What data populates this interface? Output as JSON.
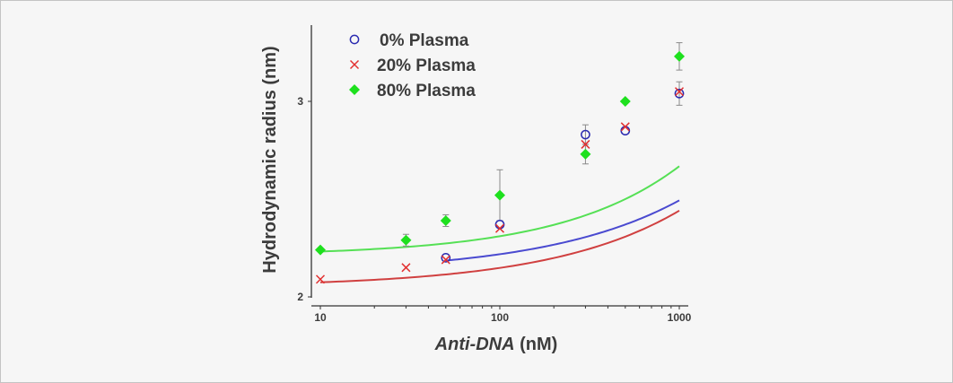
{
  "chart_data": {
    "type": "scatter",
    "x_scale": "log",
    "xlim": [
      10,
      1000
    ],
    "ylim": [
      2,
      3.4
    ],
    "xlabel_italic": "Anti-DNA",
    "xlabel_rest": " (nM)",
    "ylabel": "Hydrodynamic radius (nm)",
    "x_ticks": [
      {
        "value": 10,
        "label": "10"
      },
      {
        "value": 100,
        "label": "100"
      },
      {
        "value": 1000,
        "label": "1000"
      }
    ],
    "y_ticks": [
      {
        "value": 2,
        "label": "2"
      },
      {
        "value": 3,
        "label": "3"
      }
    ],
    "legend_position": "top-left",
    "series": [
      {
        "name": "0% Plasma",
        "marker": "circle",
        "color": "#2b2bb0",
        "curve_color": "#4a4ad0",
        "points": [
          {
            "x": 50,
            "y": 2.2
          },
          {
            "x": 100,
            "y": 2.37
          },
          {
            "x": 300,
            "y": 2.83,
            "err": 0.05
          },
          {
            "x": 500,
            "y": 2.85
          },
          {
            "x": 1000,
            "y": 3.04,
            "err": 0.06
          }
        ],
        "fit": {
          "x_start": 50,
          "x_end": 1000,
          "y0": 2.12,
          "a": 0.0068,
          "b": 0.58
        }
      },
      {
        "name": "20% Plasma",
        "marker": "cross",
        "color": "#e23030",
        "curve_color": "#d04040",
        "points": [
          {
            "x": 10,
            "y": 2.09
          },
          {
            "x": 30,
            "y": 2.15
          },
          {
            "x": 50,
            "y": 2.19
          },
          {
            "x": 100,
            "y": 2.35
          },
          {
            "x": 300,
            "y": 2.78
          },
          {
            "x": 500,
            "y": 2.87
          },
          {
            "x": 1000,
            "y": 3.05
          }
        ],
        "fit": {
          "x_start": 10,
          "x_end": 1000,
          "y0": 2.05,
          "a": 0.0062,
          "b": 0.6
        }
      },
      {
        "name": "80% Plasma",
        "marker": "diamond",
        "color": "#1ee01e",
        "curve_color": "#55e055",
        "points": [
          {
            "x": 10,
            "y": 2.24
          },
          {
            "x": 30,
            "y": 2.29,
            "err": 0.03
          },
          {
            "x": 50,
            "y": 2.39,
            "err": 0.03
          },
          {
            "x": 100,
            "y": 2.52,
            "err": 0.13
          },
          {
            "x": 300,
            "y": 2.73,
            "err": 0.05
          },
          {
            "x": 500,
            "y": 3.0
          },
          {
            "x": 1000,
            "y": 3.23,
            "err": 0.07
          }
        ],
        "fit": {
          "x_start": 10,
          "x_end": 1000,
          "y0": 2.21,
          "a": 0.0048,
          "b": 0.66
        }
      }
    ]
  }
}
